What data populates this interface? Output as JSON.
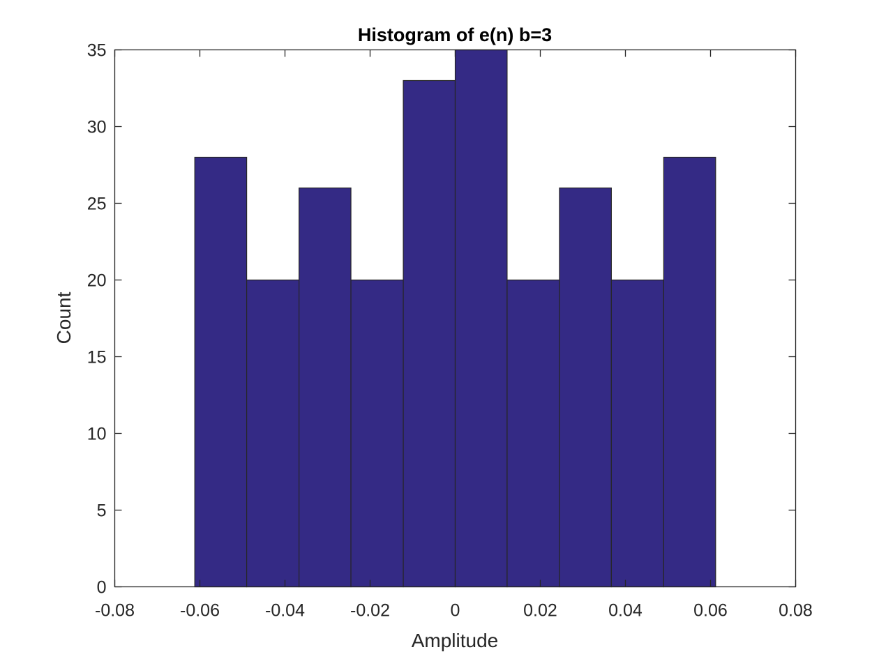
{
  "chart_data": {
    "type": "bar",
    "title": "Histogram of e(n) b=3",
    "xlabel": "Amplitude",
    "ylabel": "Count",
    "xlim": [
      -0.08,
      0.08
    ],
    "ylim": [
      0,
      35
    ],
    "xticks": [
      "-0.08",
      "-0.06",
      "-0.04",
      "-0.02",
      "0",
      "0.02",
      "0.04",
      "0.06",
      "0.08"
    ],
    "xtick_values": [
      -0.08,
      -0.06,
      -0.04,
      -0.02,
      0,
      0.02,
      0.04,
      0.06,
      0.08
    ],
    "yticks": [
      "0",
      "5",
      "10",
      "15",
      "20",
      "25",
      "30",
      "35"
    ],
    "ytick_values": [
      0,
      5,
      10,
      15,
      20,
      25,
      30,
      35
    ],
    "bin_edges": [
      -0.0612,
      -0.049,
      -0.0367,
      -0.0245,
      -0.0122,
      0,
      0.0122,
      0.0245,
      0.0367,
      0.049,
      0.0612
    ],
    "values": [
      28,
      20,
      26,
      20,
      33,
      35,
      20,
      26,
      20,
      28
    ],
    "grid": false,
    "colors": {
      "bar_fill": "#342a85",
      "bar_edge": "#262626",
      "axis": "#262626"
    }
  }
}
